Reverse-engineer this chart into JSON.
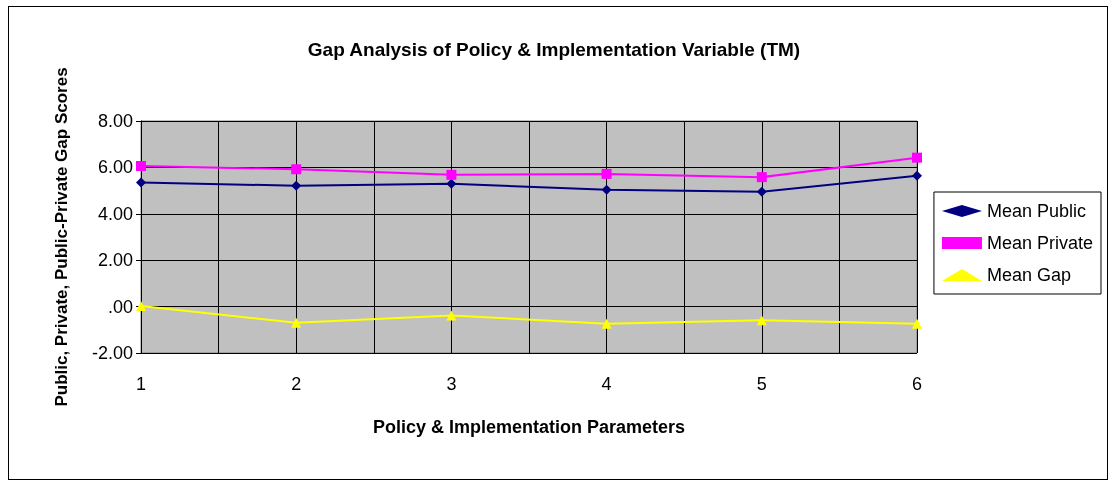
{
  "chart_data": {
    "type": "line",
    "title": "Gap Analysis of Policy & Implementation Variable (TM)",
    "xlabel": "Policy & Implementation Parameters",
    "ylabel": "Public, Private, Public-Private Gap Scores",
    "x": [
      1,
      2,
      3,
      4,
      5,
      6
    ],
    "xlim": [
      1,
      6
    ],
    "xticks": [
      1,
      2,
      3,
      4,
      5,
      6
    ],
    "ylim": [
      -2,
      8
    ],
    "yticks": [
      {
        "value": -2,
        "label": "-2.00"
      },
      {
        "value": 0,
        "label": ".00"
      },
      {
        "value": 2,
        "label": "2.00"
      },
      {
        "value": 4,
        "label": "4.00"
      },
      {
        "value": 6,
        "label": "6.00"
      },
      {
        "value": 8,
        "label": "8.00"
      }
    ],
    "series": [
      {
        "name": "Mean Public",
        "color": "#000080",
        "marker": "diamond",
        "values": [
          5.35,
          5.21,
          5.29,
          5.04,
          4.95,
          5.64
        ]
      },
      {
        "name": "Mean Private",
        "color": "#ff00ff",
        "marker": "square",
        "values": [
          6.06,
          5.92,
          5.68,
          5.72,
          5.58,
          6.42
        ]
      },
      {
        "name": "Mean Gap",
        "color": "#ffff00",
        "marker": "triangle",
        "values": [
          0.03,
          -0.7,
          -0.38,
          -0.74,
          -0.59,
          -0.74
        ]
      }
    ],
    "grid": true,
    "legend": "right",
    "line_style": "solid"
  }
}
